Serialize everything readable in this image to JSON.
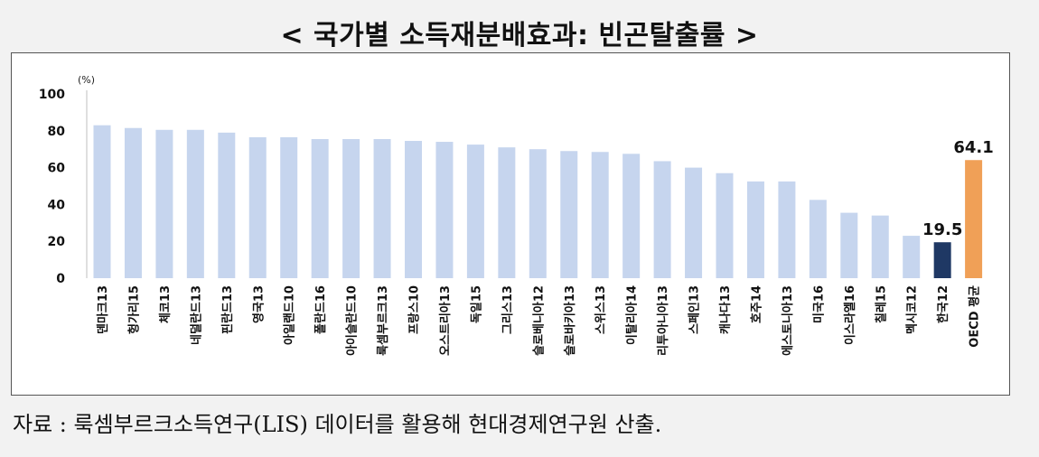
{
  "title": "< 국가별 소득재분배효과: 빈곤탈출률 >",
  "source": "자료 : 룩셈부르크소득연구(LIS) 데이터를 활용해 현대경제연구원 산출.",
  "colors": {
    "default": "#c6d5ee",
    "korea": "#1f3864",
    "oecd": "#f0a057"
  },
  "chart_data": {
    "type": "bar",
    "title": "국가별 소득재분배효과: 빈곤탈출률",
    "unit_label": "(%)",
    "ylim": [
      0,
      100
    ],
    "yticks": [
      0,
      20,
      40,
      60,
      80,
      100
    ],
    "grid": false,
    "legend": "none",
    "categories": [
      "덴마크13",
      "헝가리15",
      "체코13",
      "네덜란드13",
      "핀란드13",
      "영국13",
      "아일랜드10",
      "폴란드16",
      "아이슬란드10",
      "룩셈부르크13",
      "프랑스10",
      "오스트리아13",
      "독일15",
      "그리스13",
      "슬로베니아12",
      "슬로바키아13",
      "스위스13",
      "이탈리아14",
      "리투아니아13",
      "스페인13",
      "캐나다13",
      "호주14",
      "에스토니아13",
      "미국16",
      "이스라엘16",
      "칠레15",
      "멕시코12",
      "한국12",
      "OECD 평균"
    ],
    "values": [
      83,
      81.5,
      80.5,
      80.5,
      79,
      76.5,
      76.5,
      75.5,
      75.5,
      75.5,
      74.5,
      74,
      72.5,
      71,
      70,
      69,
      68.5,
      67.5,
      63.5,
      60,
      57,
      52.5,
      52.5,
      42.5,
      35.5,
      34,
      23,
      19.5,
      64.1
    ],
    "highlight": {
      "한국12": "korea",
      "OECD 평균": "oecd"
    },
    "data_labels": {
      "한국12": "19.5",
      "OECD 평균": "64.1"
    }
  }
}
